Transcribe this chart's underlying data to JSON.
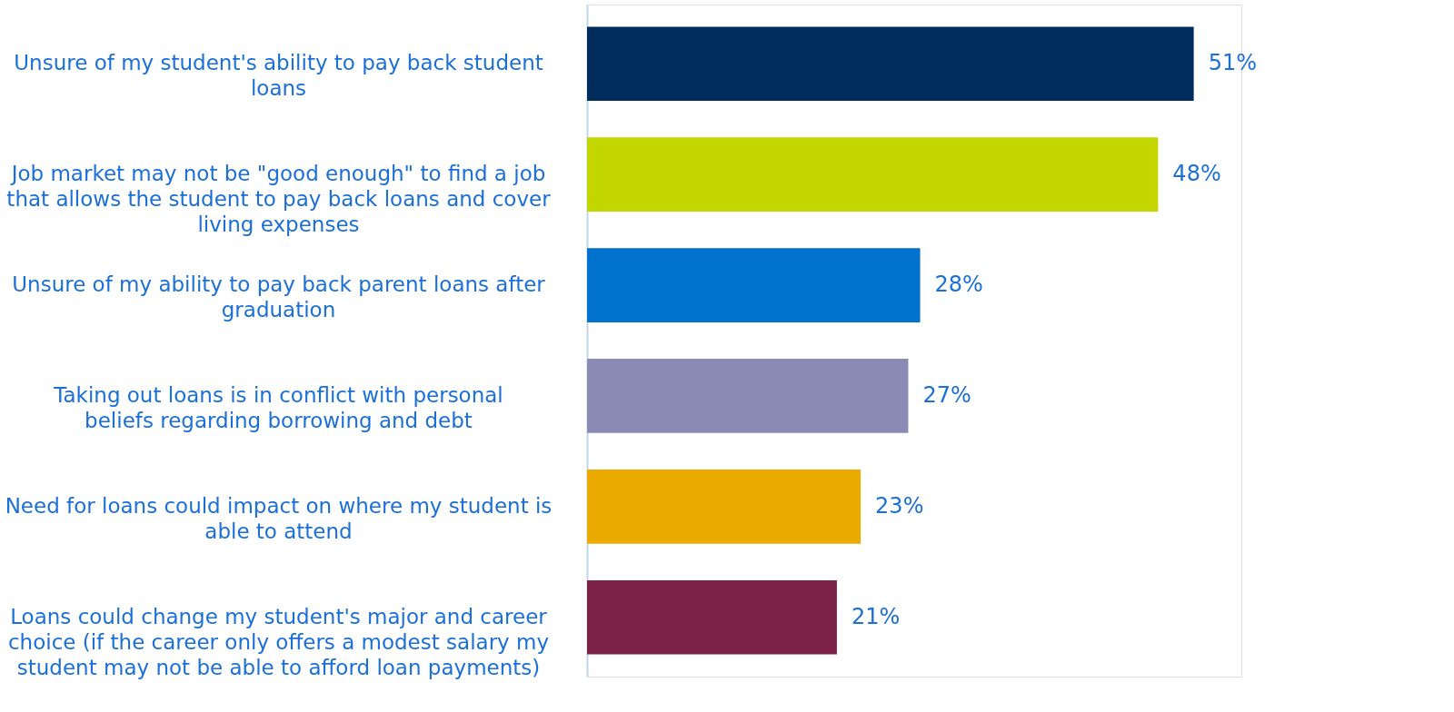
{
  "chart_data": {
    "type": "bar",
    "orientation": "horizontal",
    "categories": [
      "Unsure of my student's ability to pay back student loans",
      "Job market may not be \"good enough\" to find a job that allows the student to pay back loans and cover living expenses",
      "Unsure of my ability to pay back parent loans after graduation",
      "Taking out loans is in conflict with personal beliefs regarding borrowing and debt",
      "Need for loans could impact on where my student is able to attend",
      "Loans could change my student's major and career choice (if the career only offers a modest salary my student may not be able to afford loan payments)"
    ],
    "values": [
      51,
      48,
      28,
      27,
      23,
      21
    ],
    "value_labels": [
      "51%",
      "48%",
      "28%",
      "27%",
      "23%",
      "21%"
    ],
    "colors": [
      "#002d5b",
      "#c4d600",
      "#0072ce",
      "#8a8ab4",
      "#eaaa00",
      "#7c2146"
    ]
  }
}
